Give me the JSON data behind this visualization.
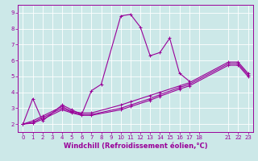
{
  "background_color": "#cce8e8",
  "grid_color": "#ffffff",
  "line_color": "#990099",
  "xlabel": "Windchill (Refroidissement éolien,°C)",
  "xlim": [
    -0.5,
    23.5
  ],
  "ylim": [
    1.5,
    9.5
  ],
  "yticks": [
    2,
    3,
    4,
    5,
    6,
    7,
    8,
    9
  ],
  "xticks": [
    0,
    1,
    2,
    3,
    4,
    5,
    6,
    7,
    8,
    9,
    10,
    11,
    12,
    13,
    14,
    15,
    16,
    17,
    18,
    21,
    22,
    23
  ],
  "series": [
    {
      "x": [
        0,
        1,
        2,
        4,
        5,
        6,
        7,
        8,
        10,
        11,
        12,
        13,
        14,
        15,
        16,
        17
      ],
      "y": [
        2.0,
        3.6,
        2.2,
        3.2,
        2.9,
        2.6,
        4.1,
        4.5,
        8.8,
        8.9,
        8.1,
        6.3,
        6.5,
        7.4,
        5.2,
        4.7
      ]
    },
    {
      "x": [
        0,
        1,
        2,
        4,
        5,
        6,
        7,
        10,
        11,
        13,
        14,
        16,
        17,
        21,
        22,
        23
      ],
      "y": [
        2.0,
        2.2,
        2.5,
        3.1,
        2.8,
        2.7,
        2.7,
        3.2,
        3.4,
        3.8,
        4.0,
        4.4,
        4.6,
        5.9,
        5.9,
        5.2
      ]
    },
    {
      "x": [
        0,
        1,
        2,
        4,
        5,
        6,
        7,
        10,
        11,
        13,
        14,
        16,
        17,
        21,
        22,
        23
      ],
      "y": [
        2.0,
        2.1,
        2.4,
        3.0,
        2.75,
        2.6,
        2.6,
        3.0,
        3.2,
        3.6,
        3.85,
        4.3,
        4.5,
        5.8,
        5.8,
        5.1
      ]
    },
    {
      "x": [
        0,
        1,
        2,
        4,
        5,
        6,
        7,
        10,
        11,
        13,
        14,
        16,
        17,
        21,
        22,
        23
      ],
      "y": [
        2.0,
        2.05,
        2.3,
        2.9,
        2.7,
        2.55,
        2.55,
        2.9,
        3.1,
        3.5,
        3.75,
        4.2,
        4.4,
        5.7,
        5.7,
        5.0
      ]
    }
  ],
  "marker": "+",
  "markersize": 3,
  "linewidth": 0.8,
  "tick_fontsize": 5.0,
  "xlabel_fontsize": 6.0
}
